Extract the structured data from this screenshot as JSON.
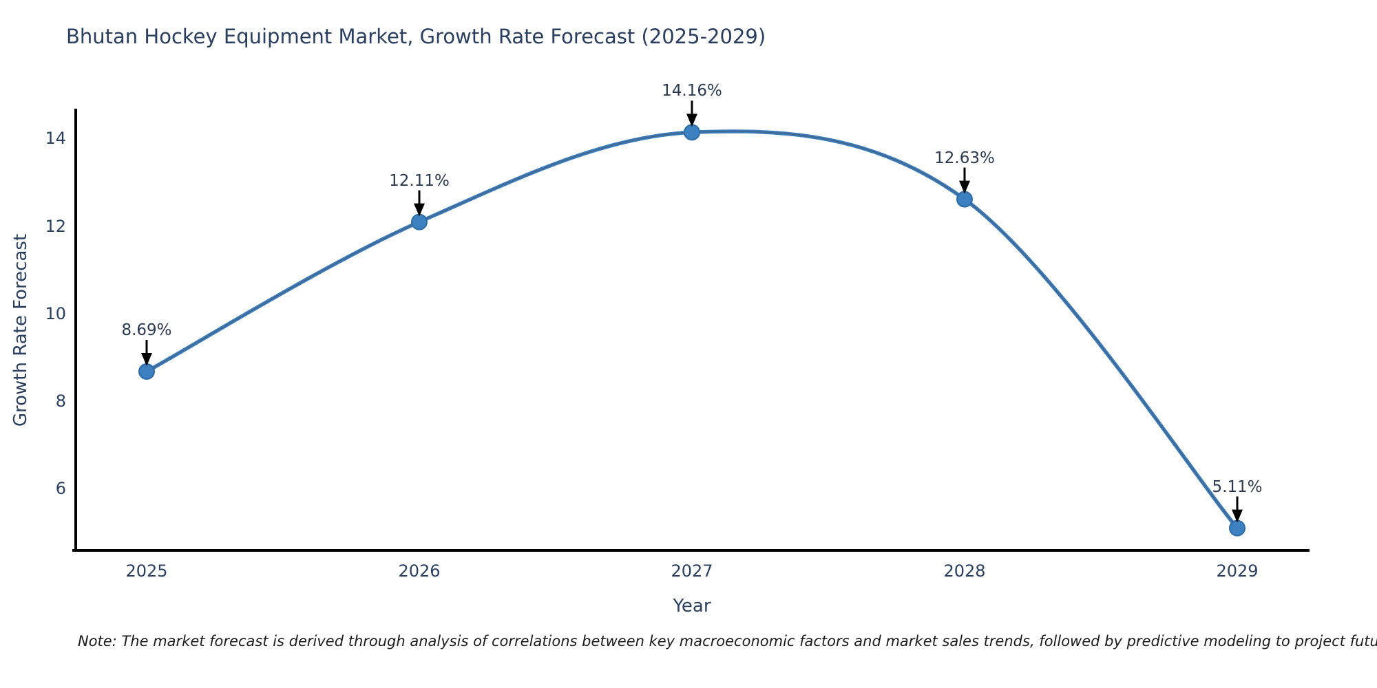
{
  "chart": {
    "note": "Note: The market forecast is derived through analysis of correlations between key macroeconomic factors and market sales trends, followed by predictive modeling to project future sales"
  },
  "chart_data": {
    "type": "line",
    "title": "Bhutan Hockey Equipment Market, Growth Rate Forecast (2025-2029)",
    "xlabel": "Year",
    "ylabel": "Growth Rate Forecast",
    "categories": [
      "2025",
      "2026",
      "2027",
      "2028",
      "2029"
    ],
    "values": [
      8.69,
      12.11,
      14.16,
      12.63,
      5.11
    ],
    "point_labels": [
      "8.69%",
      "12.11%",
      "14.16%",
      "12.63%",
      "5.11%"
    ],
    "yticks": [
      6,
      8,
      10,
      12,
      14
    ],
    "ylim": [
      4.6,
      14.7
    ],
    "grid": false,
    "legend": "none",
    "smooth": true,
    "colors": {
      "line": "#3a7cbf",
      "line_core": "#4a5560",
      "marker": "#3c80c0",
      "marker_edge": "#2d6ca6",
      "axis": "#000000",
      "arrow": "#000000",
      "text": "#2a3f5f"
    }
  }
}
